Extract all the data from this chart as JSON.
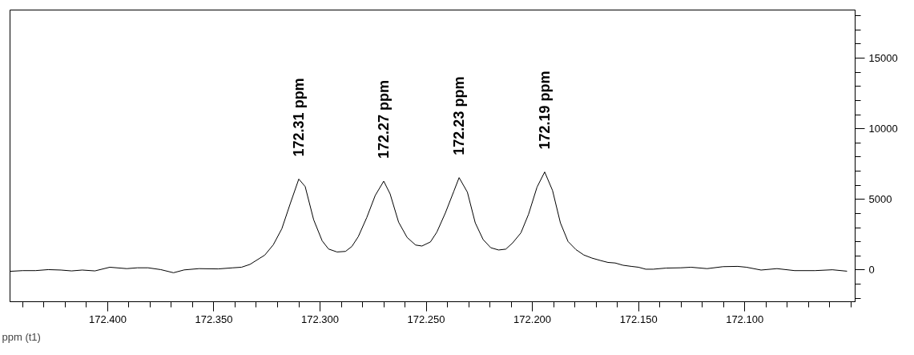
{
  "chart_data": {
    "type": "line",
    "xlabel": "ppm (t1)",
    "x": [
      172.446,
      172.44,
      172.434,
      172.428,
      172.422,
      172.417,
      172.412,
      172.406,
      172.399,
      172.391,
      172.386,
      172.381,
      172.375,
      172.369,
      172.364,
      172.357,
      172.348,
      172.341,
      172.337,
      172.333,
      172.326,
      172.322,
      172.318,
      172.314,
      172.31,
      172.307,
      172.303,
      172.299,
      172.296,
      172.292,
      172.288,
      172.285,
      172.282,
      172.278,
      172.274,
      172.27,
      172.267,
      172.263,
      172.259,
      172.255,
      172.252,
      172.248,
      172.245,
      172.241,
      172.237,
      172.2345,
      172.2306,
      172.2269,
      172.2232,
      172.2196,
      172.2159,
      172.2125,
      172.2093,
      172.2054,
      172.2018,
      172.1978,
      172.1942,
      172.1905,
      172.1868,
      172.1832,
      172.1795,
      172.1758,
      172.172,
      172.1678,
      172.1644,
      172.161,
      172.1573,
      172.1534,
      172.15,
      172.1466,
      172.1431,
      172.137,
      172.1301,
      172.1253,
      172.1177,
      172.1102,
      172.1033,
      172.0992,
      172.0923,
      172.0848,
      172.0765,
      172.0669,
      172.0587,
      172.0518
    ],
    "series": [
      {
        "color": "#000000",
        "values": [
          -90,
          -40,
          -40,
          30,
          0,
          -60,
          0,
          -60,
          200,
          100,
          160,
          160,
          30,
          -190,
          10,
          100,
          80,
          160,
          200,
          400,
          1060,
          1790,
          2920,
          4710,
          6440,
          5910,
          3560,
          2070,
          1490,
          1280,
          1320,
          1670,
          2360,
          3710,
          5280,
          6290,
          5390,
          3390,
          2310,
          1770,
          1700,
          1990,
          2680,
          4030,
          5570,
          6540,
          5510,
          3340,
          2160,
          1580,
          1420,
          1480,
          1920,
          2630,
          3950,
          5870,
          6940,
          5630,
          3340,
          2020,
          1450,
          1070,
          850,
          670,
          540,
          500,
          340,
          260,
          200,
          60,
          60,
          140,
          160,
          200,
          100,
          240,
          260,
          200,
          0,
          100,
          -40,
          -40,
          20,
          -80
        ]
      }
    ],
    "xlim": [
      172.446,
      172.048
    ],
    "ylim": [
      -2240,
      18400
    ],
    "xticks": [
      {
        "value": 172.44,
        "label": null
      },
      {
        "value": 172.43,
        "label": null
      },
      {
        "value": 172.42,
        "label": null
      },
      {
        "value": 172.41,
        "label": null
      },
      {
        "value": 172.4,
        "label": "172.400"
      },
      {
        "value": 172.39,
        "label": null
      },
      {
        "value": 172.38,
        "label": null
      },
      {
        "value": 172.37,
        "label": null
      },
      {
        "value": 172.36,
        "label": null
      },
      {
        "value": 172.35,
        "label": "172.350"
      },
      {
        "value": 172.34,
        "label": null
      },
      {
        "value": 172.33,
        "label": null
      },
      {
        "value": 172.32,
        "label": null
      },
      {
        "value": 172.31,
        "label": null
      },
      {
        "value": 172.3,
        "label": "172.300"
      },
      {
        "value": 172.29,
        "label": null
      },
      {
        "value": 172.28,
        "label": null
      },
      {
        "value": 172.27,
        "label": null
      },
      {
        "value": 172.26,
        "label": null
      },
      {
        "value": 172.25,
        "label": "172.250"
      },
      {
        "value": 172.24,
        "label": null
      },
      {
        "value": 172.23,
        "label": null
      },
      {
        "value": 172.22,
        "label": null
      },
      {
        "value": 172.21,
        "label": null
      },
      {
        "value": 172.2,
        "label": "172.200"
      },
      {
        "value": 172.19,
        "label": null
      },
      {
        "value": 172.18,
        "label": null
      },
      {
        "value": 172.17,
        "label": null
      },
      {
        "value": 172.16,
        "label": null
      },
      {
        "value": 172.15,
        "label": "172.150"
      },
      {
        "value": 172.14,
        "label": null
      },
      {
        "value": 172.13,
        "label": null
      },
      {
        "value": 172.12,
        "label": null
      },
      {
        "value": 172.11,
        "label": null
      },
      {
        "value": 172.1,
        "label": "172.100"
      },
      {
        "value": 172.09,
        "label": null
      },
      {
        "value": 172.08,
        "label": null
      },
      {
        "value": 172.07,
        "label": null
      },
      {
        "value": 172.06,
        "label": null
      },
      {
        "value": 172.05,
        "label": null
      }
    ],
    "yticks": [
      {
        "value": -2000,
        "label": null
      },
      {
        "value": -1000,
        "label": null
      },
      0,
      {
        "value": 1000,
        "label": null
      },
      {
        "value": 2000,
        "label": null
      },
      {
        "value": 3000,
        "label": null
      },
      {
        "value": 4000,
        "label": null
      },
      5000,
      {
        "value": 6000,
        "label": null
      },
      {
        "value": 7000,
        "label": null
      },
      {
        "value": 8000,
        "label": null
      },
      {
        "value": 9000,
        "label": null
      },
      10000,
      {
        "value": 11000,
        "label": null
      },
      {
        "value": 12000,
        "label": null
      },
      {
        "value": 13000,
        "label": null
      },
      {
        "value": 14000,
        "label": null
      },
      15000,
      {
        "value": 16000,
        "label": null
      },
      {
        "value": 17000,
        "label": null
      },
      {
        "value": 18000,
        "label": null
      }
    ],
    "annotations": [
      {
        "text": "172.31 ppm",
        "x": 172.31,
        "y": 6440
      },
      {
        "text": "172.27 ppm",
        "x": 172.27,
        "y": 6290
      },
      {
        "text": "172.23 ppm",
        "x": 172.2345,
        "y": 6540
      },
      {
        "text": "172.19 ppm",
        "x": 172.1942,
        "y": 6940
      }
    ],
    "grid": false,
    "marker": "none",
    "line_style": "solid"
  }
}
